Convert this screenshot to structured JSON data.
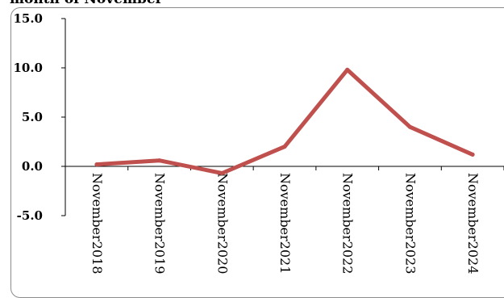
{
  "chart_data": {
    "type": "line",
    "title": "month of November",
    "categories": [
      "November2018",
      "November2019",
      "November2020",
      "November2021",
      "November2022",
      "November2023",
      "November2024"
    ],
    "series": [
      {
        "values": [
          0.2,
          0.6,
          -0.7,
          2.0,
          9.8,
          4.0,
          1.2
        ]
      }
    ],
    "y_ticks": [
      "15.0",
      "10.0",
      "5.0",
      "0.0",
      "-5.0"
    ],
    "ylim": [
      -5.0,
      15.0
    ],
    "grid": false,
    "legend": "none",
    "line_color": "#c0504d",
    "axis_color": "#000000"
  }
}
